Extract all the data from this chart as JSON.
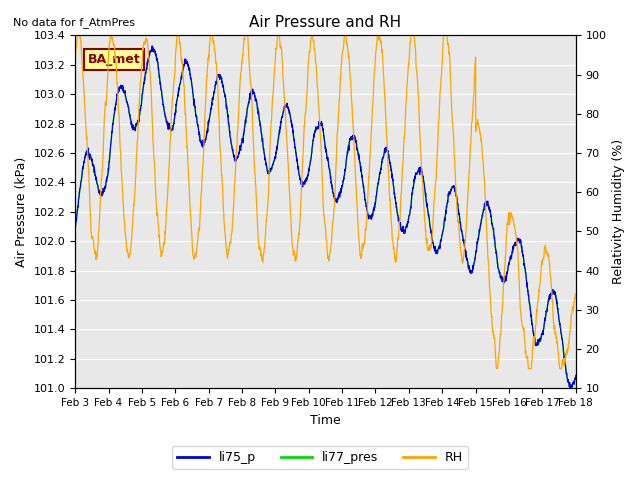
{
  "title": "Air Pressure and RH",
  "note": "No data for f_AtmPres",
  "xlabel": "Time",
  "ylabel_left": "Air Pressure (kPa)",
  "ylabel_right": "Relativity Humidity (%)",
  "ylim_left": [
    101.0,
    103.4
  ],
  "ylim_right": [
    10,
    100
  ],
  "yticks_left": [
    101.0,
    101.2,
    101.4,
    101.6,
    101.8,
    102.0,
    102.2,
    102.4,
    102.6,
    102.8,
    103.0,
    103.2,
    103.4
  ],
  "yticks_right": [
    10,
    20,
    30,
    40,
    50,
    60,
    70,
    80,
    90,
    100
  ],
  "xtick_labels": [
    "Feb 3",
    "Feb 4",
    "Feb 5",
    "Feb 6",
    "Feb 7",
    "Feb 8",
    "Feb 9",
    "Feb 10",
    "Feb 11",
    "Feb 12",
    "Feb 13",
    "Feb 14",
    "Feb 15",
    "Feb 16",
    "Feb 17",
    "Feb 18"
  ],
  "color_li75": "#0000dd",
  "color_li77": "#00dd00",
  "color_rh": "#ffa500",
  "plot_bg": "#e8e8e8",
  "legend_label1": "li75_p",
  "legend_label2": "li77_pres",
  "legend_label3": "RH",
  "ba_met_label": "BA_met",
  "ba_met_bg": "#ffff99",
  "ba_met_border": "#8b0000",
  "ba_met_text": "#8b0000"
}
